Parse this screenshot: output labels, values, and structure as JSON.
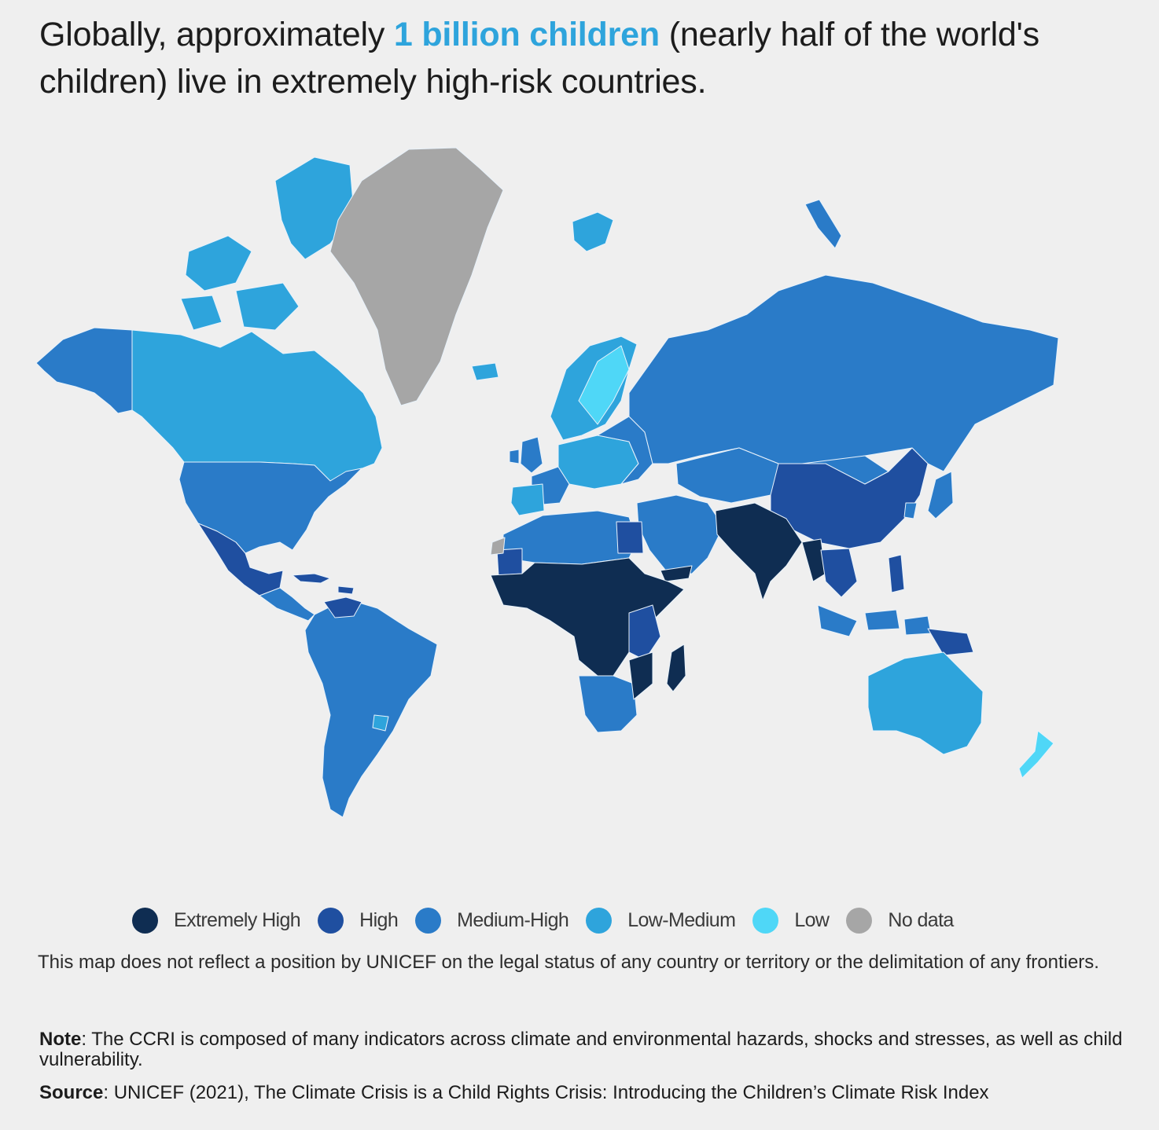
{
  "headline": {
    "before": "Globally, approximately ",
    "highlight": "1 billion children",
    "after": " (nearly half of the world's children) live in extremely high-risk countries."
  },
  "colors": {
    "extremely_high": "#0f2d52",
    "high": "#1f4fa0",
    "medium_high": "#2a7bc8",
    "low_medium": "#2ea4dc",
    "low": "#4fd7f7",
    "no_data": "#a6a6a6",
    "highlight": "#2ea4dc",
    "background": "#efefef"
  },
  "legend": [
    {
      "label": "Extremely High",
      "color": "#0f2d52"
    },
    {
      "label": "High",
      "color": "#1f4fa0"
    },
    {
      "label": "Medium-High",
      "color": "#2a7bc8"
    },
    {
      "label": "Low-Medium",
      "color": "#2ea4dc"
    },
    {
      "label": "Low",
      "color": "#4fd7f7"
    },
    {
      "label": "No data",
      "color": "#a6a6a6"
    }
  ],
  "disclaimer": "This map does not reflect a position by UNICEF on the legal status of any country or territory or the delimitation of any frontiers.",
  "note": {
    "label": "Note",
    "text": ": The CCRI is composed of many indicators across climate and environmental hazards, shocks and stresses, as well as child vulnerability."
  },
  "source": {
    "label": "Source",
    "text": ": UNICEF (2021), The Climate Crisis is a Child Rights Crisis: Introducing the Children’s Climate Risk Index"
  },
  "map_regions": [
    {
      "name": "greenland",
      "category": "no_data"
    },
    {
      "name": "canada",
      "category": "low_medium"
    },
    {
      "name": "canadian-arctic-islands",
      "category": "low_medium"
    },
    {
      "name": "alaska",
      "category": "medium_high"
    },
    {
      "name": "united-states",
      "category": "medium_high"
    },
    {
      "name": "mexico",
      "category": "high"
    },
    {
      "name": "central-america",
      "category": "medium_high"
    },
    {
      "name": "caribbean",
      "category": "high"
    },
    {
      "name": "venezuela",
      "category": "high"
    },
    {
      "name": "south-america",
      "category": "medium_high"
    },
    {
      "name": "uruguay",
      "category": "low_medium"
    },
    {
      "name": "iceland",
      "category": "low_medium"
    },
    {
      "name": "uk-ireland",
      "category": "medium_high"
    },
    {
      "name": "scandinavia",
      "category": "low_medium"
    },
    {
      "name": "nordic-low",
      "category": "low"
    },
    {
      "name": "western-europe",
      "category": "medium_high"
    },
    {
      "name": "iberia",
      "category": "low_medium"
    },
    {
      "name": "central-europe",
      "category": "low_medium"
    },
    {
      "name": "eastern-europe",
      "category": "medium_high"
    },
    {
      "name": "russia",
      "category": "medium_high"
    },
    {
      "name": "svalbard",
      "category": "low_medium"
    },
    {
      "name": "novaya-zemlya",
      "category": "medium_high"
    },
    {
      "name": "central-asia",
      "category": "medium_high"
    },
    {
      "name": "mongolia",
      "category": "medium_high"
    },
    {
      "name": "china",
      "category": "high"
    },
    {
      "name": "korea-japan",
      "category": "medium_high"
    },
    {
      "name": "middle-east",
      "category": "medium_high"
    },
    {
      "name": "yemen",
      "category": "extremely_high"
    },
    {
      "name": "south-asia",
      "category": "extremely_high"
    },
    {
      "name": "myanmar",
      "category": "extremely_high"
    },
    {
      "name": "southeast-asia",
      "category": "high"
    },
    {
      "name": "philippines",
      "category": "high"
    },
    {
      "name": "indonesia",
      "category": "medium_high"
    },
    {
      "name": "papua",
      "category": "high"
    },
    {
      "name": "australia",
      "category": "low_medium"
    },
    {
      "name": "new-zealand",
      "category": "low"
    },
    {
      "name": "north-africa",
      "category": "medium_high"
    },
    {
      "name": "egypt",
      "category": "high"
    },
    {
      "name": "mauritania",
      "category": "high"
    },
    {
      "name": "western-sahara",
      "category": "no_data"
    },
    {
      "name": "sahel-central-africa",
      "category": "extremely_high"
    },
    {
      "name": "east-africa",
      "category": "high"
    },
    {
      "name": "southern-africa",
      "category": "medium_high"
    },
    {
      "name": "mozambique",
      "category": "extremely_high"
    },
    {
      "name": "madagascar",
      "category": "extremely_high"
    }
  ]
}
